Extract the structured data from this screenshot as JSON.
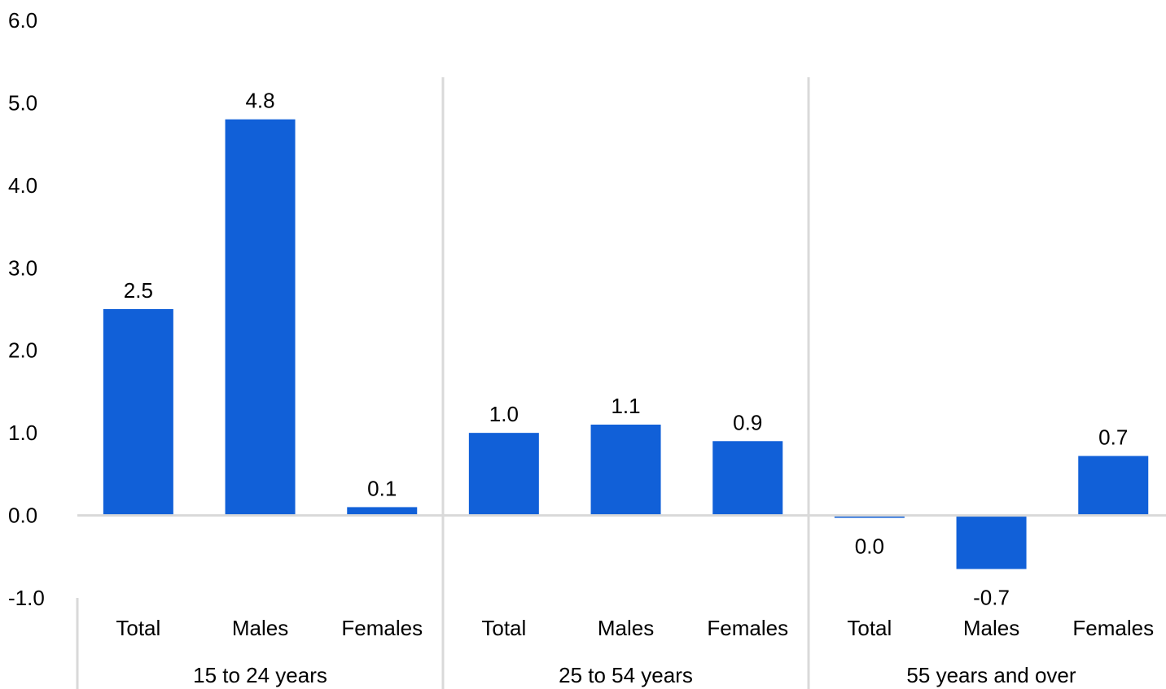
{
  "chart_data": {
    "type": "bar",
    "title": "",
    "xlabel": "",
    "ylabel": "",
    "ylim": [
      -1.0,
      6.0
    ],
    "yticks": [
      -1.0,
      0.0,
      1.0,
      2.0,
      3.0,
      4.0,
      5.0,
      6.0
    ],
    "ytick_labels": [
      "-1.0",
      "0.0",
      "1.0",
      "2.0",
      "3.0",
      "4.0",
      "5.0",
      "6.0"
    ],
    "grid": false,
    "bar_color": "#1160D8",
    "separator_color": "#D9D9D9",
    "groups": [
      {
        "label": "15 to 24 years",
        "categories": [
          "Total",
          "Males",
          "Females"
        ],
        "values": [
          2.5,
          4.8,
          0.1
        ],
        "value_labels": [
          "2.5",
          "4.8",
          "0.1"
        ]
      },
      {
        "label": "25 to 54 years",
        "categories": [
          "Total",
          "Males",
          "Females"
        ],
        "values": [
          1.0,
          1.1,
          0.9
        ],
        "value_labels": [
          "1.0",
          "1.1",
          "0.9"
        ]
      },
      {
        "label": "55 years and over",
        "categories": [
          "Total",
          "Males",
          "Females"
        ],
        "values": [
          -0.03,
          -0.65,
          0.72
        ],
        "value_labels": [
          "0.0",
          "-0.7",
          "0.7"
        ]
      }
    ]
  }
}
